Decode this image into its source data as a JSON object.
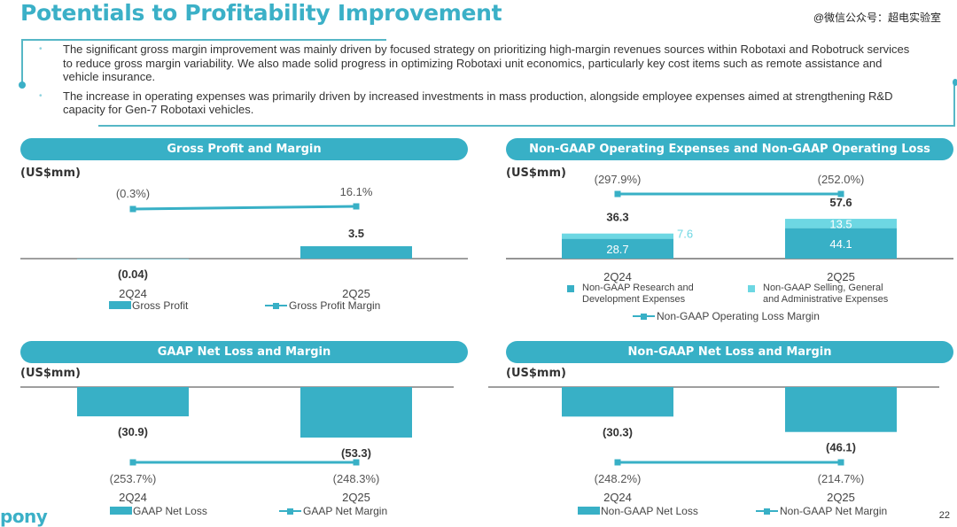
{
  "header": {
    "title": "Potentials to Profitability Improvement",
    "watermark": "@微信公众号：超电实验室"
  },
  "bullets": [
    "The significant gross margin improvement was mainly driven by focused strategy on prioritizing high-margin revenues sources within Robotaxi and Robotruck services to reduce gross margin variability. We also made solid progress in optimizing Robotaxi unit economics, particularly key cost items such as remote assistance and vehicle insurance.",
    "The increase in operating expenses was primarily driven by increased investments in mass production, alongside employee expenses aimed at strengthening R&D capacity for Gen-7 Robotaxi vehicles."
  ],
  "footer": {
    "logo": "pony",
    "page_number": "22"
  },
  "colors": {
    "primary": "#38b0c6",
    "light": "#6dd7e3",
    "line": "#38b0c6"
  },
  "chart_data": [
    {
      "id": "gross",
      "type": "bar",
      "title": "Gross Profit and Margin",
      "unit": "(US$mm)",
      "categories": [
        "2Q24",
        "2Q25"
      ],
      "series": [
        {
          "name": "Gross Profit",
          "kind": "bar",
          "values": [
            -0.04,
            3.5
          ],
          "labels": [
            "(0.04)",
            "3.5"
          ]
        },
        {
          "name": "Gross Profit Margin",
          "kind": "line",
          "values": [
            -0.3,
            16.1
          ],
          "labels": [
            "(0.3%)",
            "16.1%"
          ]
        }
      ],
      "legend": [
        "Gross Profit",
        "Gross Profit Margin"
      ],
      "legend_position": "bottom"
    },
    {
      "id": "opex",
      "type": "bar",
      "stacked": true,
      "title": "Non-GAAP Operating Expenses and Non-GAAP Operating Loss Margin",
      "unit": "(US$mm)",
      "categories": [
        "2Q24",
        "2Q25"
      ],
      "totals": [
        36.3,
        57.6
      ],
      "total_labels": [
        "36.3",
        "57.6"
      ],
      "series": [
        {
          "name": "Non-GAAP Research and Development Expenses",
          "kind": "bar",
          "values": [
            28.7,
            44.1
          ],
          "labels": [
            "28.7",
            "44.1"
          ]
        },
        {
          "name": "Non-GAAP Selling, General and Administrative Expenses",
          "kind": "bar",
          "values": [
            7.6,
            13.5
          ],
          "labels": [
            "7.6",
            "13.5"
          ]
        },
        {
          "name": "Non-GAAP Operating Loss Margin",
          "kind": "line",
          "values": [
            -297.9,
            -252.0
          ],
          "labels": [
            "(297.9%)",
            "(252.0%)"
          ]
        }
      ],
      "legend": [
        "Non-GAAP Research and Development Expenses",
        "Non-GAAP Selling, General and Administrative Expenses",
        "Non-GAAP Operating Loss Margin"
      ],
      "legend_position": "bottom"
    },
    {
      "id": "gaapnet",
      "type": "bar",
      "title": "GAAP Net Loss and Margin",
      "unit": "(US$mm)",
      "categories": [
        "2Q24",
        "2Q25"
      ],
      "series": [
        {
          "name": "GAAP Net Loss",
          "kind": "bar",
          "values": [
            -30.9,
            -53.3
          ],
          "labels": [
            "(30.9)",
            "(53.3)"
          ]
        },
        {
          "name": "GAAP Net Margin",
          "kind": "line",
          "values": [
            -253.7,
            -248.3
          ],
          "labels": [
            "(253.7%)",
            "(248.3%)"
          ]
        }
      ],
      "legend": [
        "GAAP Net Loss",
        "GAAP Net Margin"
      ],
      "legend_position": "bottom"
    },
    {
      "id": "nongaapnet",
      "type": "bar",
      "title": "Non-GAAP Net Loss and Margin",
      "unit": "(US$mm)",
      "categories": [
        "2Q24",
        "2Q25"
      ],
      "series": [
        {
          "name": "Non-GAAP Net Loss",
          "kind": "bar",
          "values": [
            -30.3,
            -46.1
          ],
          "labels": [
            "(30.3)",
            "(46.1)"
          ]
        },
        {
          "name": "Non-GAAP Net Margin",
          "kind": "line",
          "values": [
            -248.2,
            -214.7
          ],
          "labels": [
            "(248.2%)",
            "(214.7%)"
          ]
        }
      ],
      "legend": [
        "Non-GAAP Net Loss",
        "Non-GAAP Net Margin"
      ],
      "legend_position": "bottom"
    }
  ]
}
